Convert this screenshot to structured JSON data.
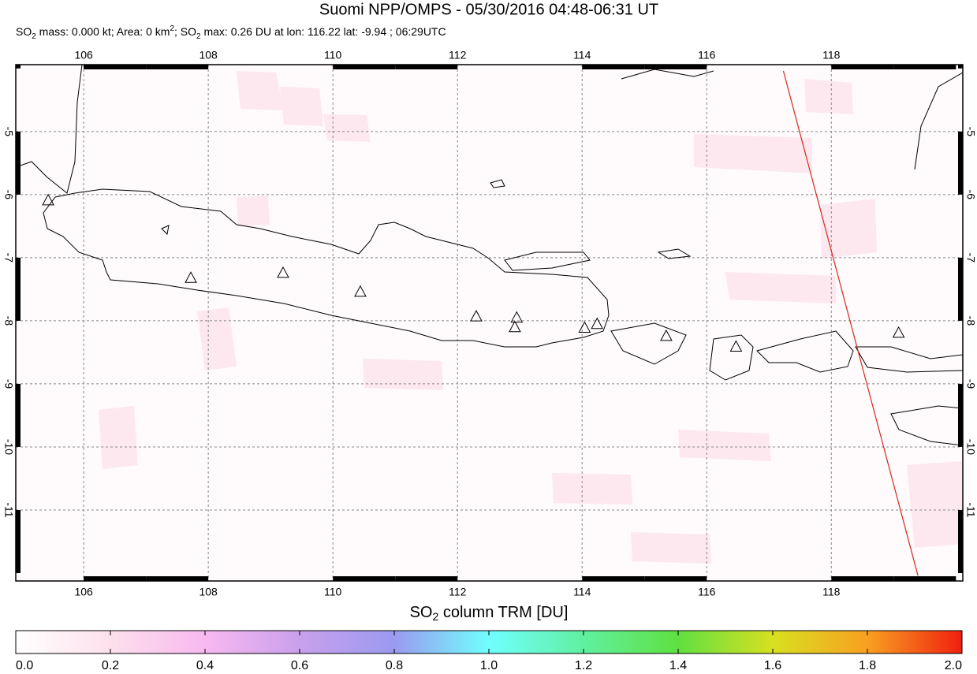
{
  "chart_data": {
    "type": "map",
    "title": "Suomi NPP/OMPS - 05/30/2016 04:48-06:31 UT",
    "subtitle": [
      "SO",
      "2",
      " mass: 0.000 kt; Area: 0 km",
      "2",
      "; SO",
      "2",
      " max: 0.26 DU at lon: 116.22 lat: -9.94 ; 06:29UTC"
    ],
    "xlim": [
      104.91,
      120.11
    ],
    "ylim": [
      -12.125,
      -3.94
    ],
    "xticks": [
      106,
      108,
      110,
      112,
      114,
      116,
      118
    ],
    "yticks": [
      -5,
      -6,
      -7,
      -8,
      -9,
      -10,
      -11
    ],
    "grid": true,
    "volcanoes": {
      "lon": [
        105.43,
        107.72,
        109.2,
        110.44,
        112.3,
        112.95,
        112.92,
        114.04,
        114.24,
        115.35,
        116.47,
        119.08
      ],
      "lat": [
        -6.1,
        -7.33,
        -7.25,
        -7.55,
        -7.94,
        -7.96,
        -8.11,
        -8.12,
        -8.06,
        -8.25,
        -8.42,
        -8.2
      ]
    },
    "swath_edge": {
      "lon": [
        117.23,
        119.39
      ],
      "lat": [
        -4.04,
        -12.04
      ],
      "color": "#d42a1a"
    },
    "colorbar": {
      "label": [
        "SO",
        "2",
        " column TRM [DU]"
      ],
      "lim": [
        0,
        2
      ],
      "ticks": [
        {
          "value": 0,
          "label": "0.0"
        },
        {
          "value": 0.2,
          "label": "0.2"
        },
        {
          "value": 0.4,
          "label": "0.4"
        },
        {
          "value": 0.6,
          "label": "0.6"
        },
        {
          "value": 0.8,
          "label": "0.8"
        },
        {
          "value": 1,
          "label": "1.0"
        },
        {
          "value": 1.2,
          "label": "1.2"
        },
        {
          "value": 1.4,
          "label": "1.4"
        },
        {
          "value": 1.6,
          "label": "1.6"
        },
        {
          "value": 1.8,
          "label": "1.8"
        },
        {
          "value": 2,
          "label": "2.0"
        }
      ]
    }
  }
}
